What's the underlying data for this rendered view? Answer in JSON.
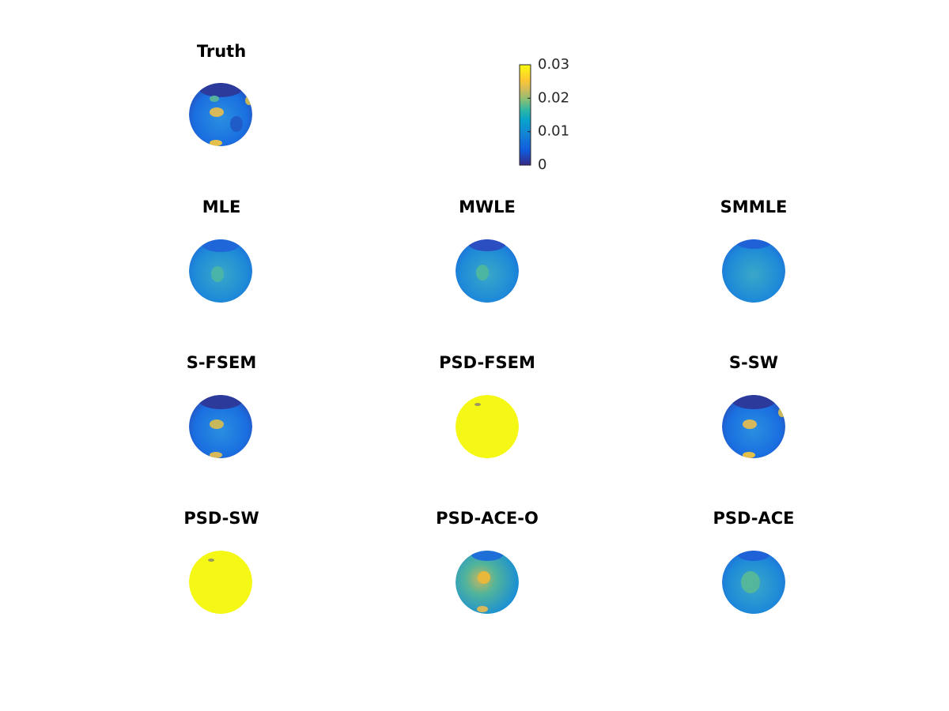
{
  "panels": [
    "Truth",
    "MLE",
    "MWLE",
    "SMMLE",
    "S-FSEM",
    "PSD-FSEM",
    "S-SW",
    "PSD-SW",
    "PSD-ACE-O",
    "PSD-ACE"
  ],
  "colorbar": {
    "lim": [
      0,
      0.03
    ],
    "ticks": [
      0,
      0.01,
      0.02,
      0.03
    ]
  }
}
